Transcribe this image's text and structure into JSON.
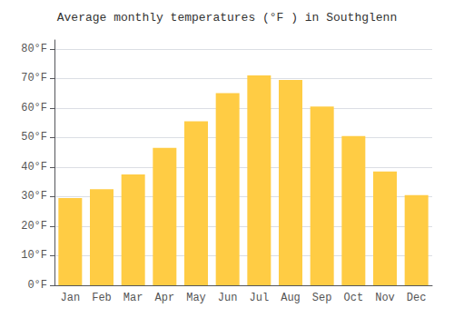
{
  "chart_data": {
    "type": "bar",
    "title": "Average monthly temperatures (°F ) in Southglenn",
    "categories": [
      "Jan",
      "Feb",
      "Mar",
      "Apr",
      "May",
      "Jun",
      "Jul",
      "Aug",
      "Sep",
      "Oct",
      "Nov",
      "Dec"
    ],
    "values": [
      29.5,
      32.5,
      37.5,
      46.5,
      55.5,
      65.0,
      71.0,
      69.5,
      60.5,
      50.5,
      38.5,
      30.5
    ],
    "color": "#FFCC44",
    "ylim": [
      0,
      83
    ],
    "yticks": [
      {
        "value": 0,
        "label": "0°F"
      },
      {
        "value": 10,
        "label": "10°F"
      },
      {
        "value": 20,
        "label": "20°F"
      },
      {
        "value": 30,
        "label": "30°F"
      },
      {
        "value": 40,
        "label": "40°F"
      },
      {
        "value": 50,
        "label": "50°F"
      },
      {
        "value": 60,
        "label": "60°F"
      },
      {
        "value": 70,
        "label": "70°F"
      },
      {
        "value": 80,
        "label": "80°F"
      }
    ],
    "grid": true
  }
}
